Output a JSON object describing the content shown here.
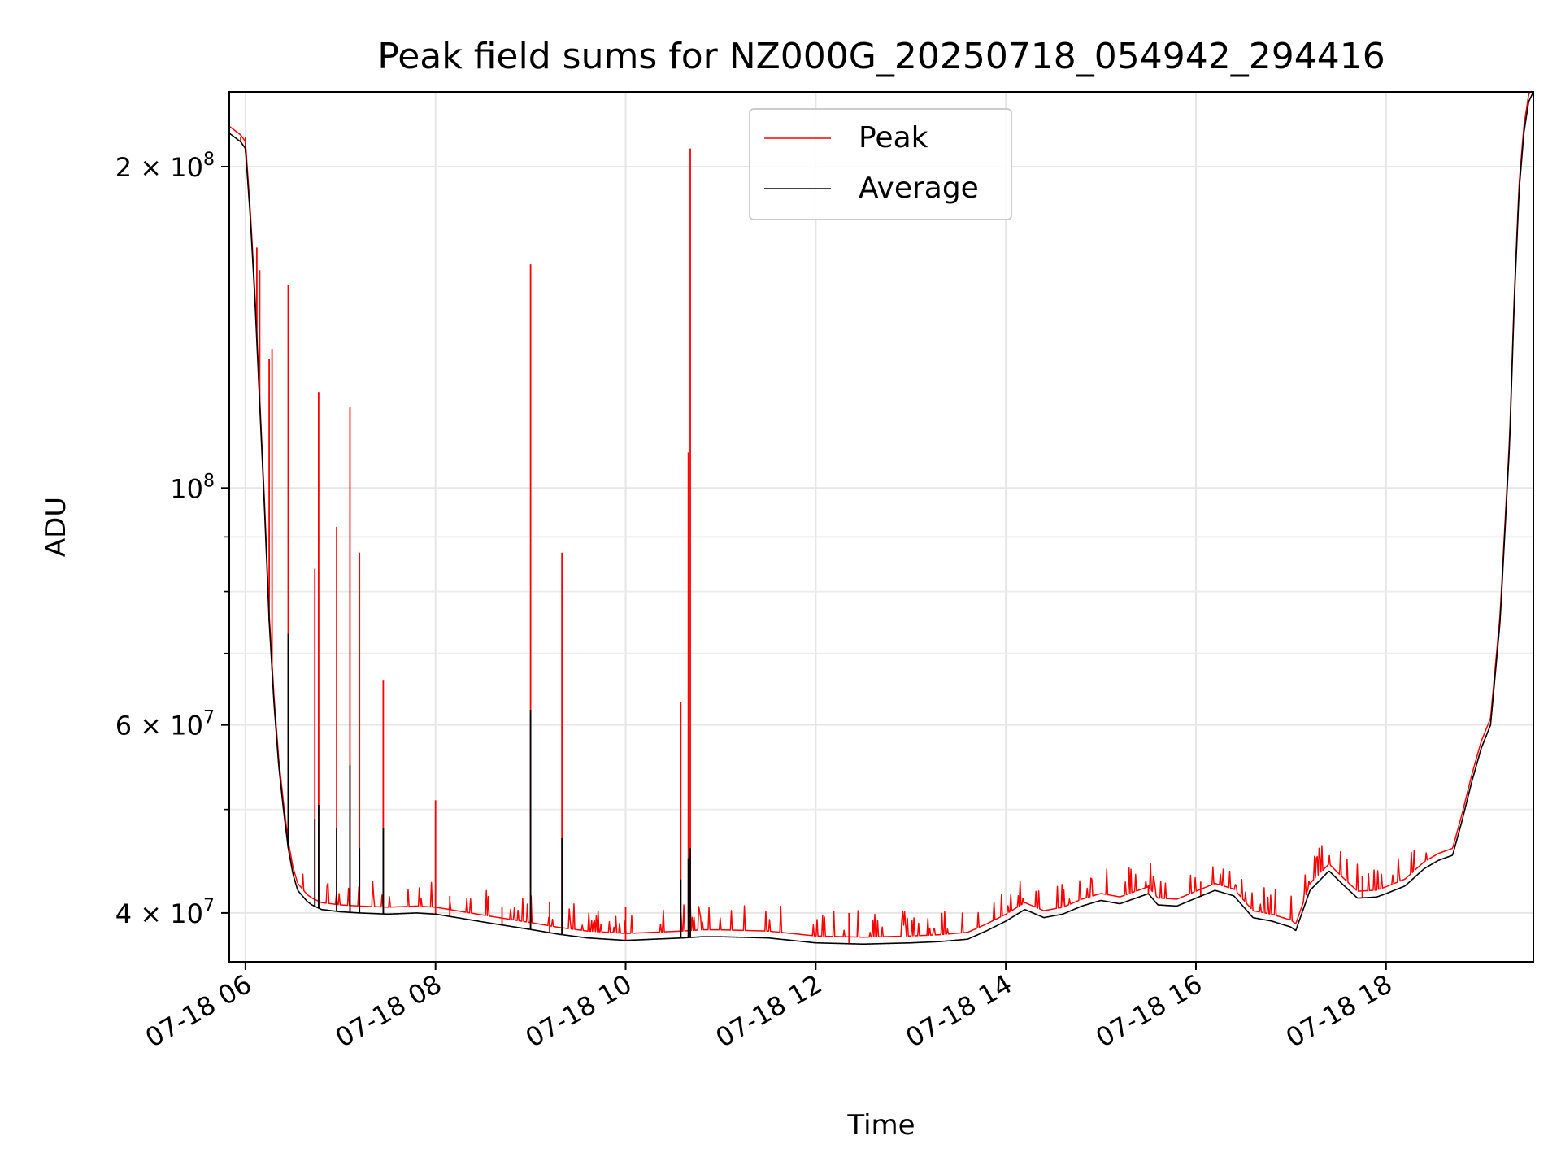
{
  "chart_data": {
    "type": "line",
    "title": "Peak field sums for NZ000G_20250718_054942_294416",
    "xlabel": "Time",
    "ylabel": "ADU",
    "x_unit": "hours (local time of day, 2025-07-18)",
    "xlim": [
      5.83,
      19.55
    ],
    "ylim": [
      36000000,
      235000000
    ],
    "yscale": "log",
    "grid": true,
    "legend_position": "top-center",
    "x_tick_labels": [
      "07-18 06",
      "07-18 08",
      "07-18 10",
      "07-18 12",
      "07-18 14",
      "07-18 16",
      "07-18 18"
    ],
    "x_ticks": [
      6,
      8,
      10,
      12,
      14,
      16,
      18
    ],
    "y_tick_labels": [
      {
        "value": 40000000,
        "mantissa": "4",
        "exponent": "7"
      },
      {
        "value": 60000000,
        "mantissa": "6",
        "exponent": "7"
      },
      {
        "value": 100000000,
        "mantissa": "",
        "exponent": "8"
      },
      {
        "value": 200000000,
        "mantissa": "2",
        "exponent": "8"
      }
    ],
    "y_minor_ticks": [
      50000000,
      70000000,
      80000000,
      90000000
    ],
    "series": [
      {
        "name": "Average",
        "color": "#000000",
        "x": [
          5.83,
          5.95,
          6.0,
          6.05,
          6.1,
          6.15,
          6.2,
          6.25,
          6.3,
          6.35,
          6.4,
          6.45,
          6.5,
          6.55,
          6.6,
          6.65,
          6.7,
          6.75,
          6.8,
          6.9,
          7.0,
          7.2,
          7.5,
          7.8,
          8.0,
          8.3,
          8.6,
          9.0,
          9.3,
          9.6,
          9.8,
          10.0,
          10.3,
          10.6,
          10.8,
          11.0,
          11.5,
          12.0,
          12.5,
          13.0,
          13.3,
          13.6,
          13.8,
          14.0,
          14.2,
          14.4,
          14.6,
          14.8,
          15.0,
          15.2,
          15.4,
          15.5,
          15.6,
          15.8,
          16.0,
          16.2,
          16.4,
          16.6,
          16.8,
          17.0,
          17.05,
          17.2,
          17.4,
          17.55,
          17.7,
          17.9,
          18.0,
          18.2,
          18.4,
          18.55,
          18.7,
          18.8,
          18.9,
          19.0,
          19.1,
          19.2,
          19.3,
          19.35,
          19.4,
          19.45,
          19.5,
          19.55
        ],
        "values": [
          215000000,
          211000000,
          208000000,
          180000000,
          150000000,
          120000000,
          96000000,
          75000000,
          63000000,
          55000000,
          50000000,
          46000000,
          43500000,
          42000000,
          41500000,
          41000000,
          40700000,
          40500000,
          40300000,
          40200000,
          40100000,
          40000000,
          39900000,
          40000000,
          39900000,
          39500000,
          39100000,
          38600000,
          38200000,
          37900000,
          37800000,
          37700000,
          37800000,
          37900000,
          38000000,
          38000000,
          37900000,
          37500000,
          37400000,
          37500000,
          37600000,
          37800000,
          38500000,
          39300000,
          40300000,
          39600000,
          39900000,
          40600000,
          41100000,
          40800000,
          41400000,
          41700000,
          40700000,
          40600000,
          41300000,
          42000000,
          41500000,
          39600000,
          39300000,
          38800000,
          38500000,
          42000000,
          43800000,
          42500000,
          41300000,
          41400000,
          41700000,
          42400000,
          44000000,
          44800000,
          45300000,
          48800000,
          53000000,
          57000000,
          60000000,
          75000000,
          110000000,
          150000000,
          190000000,
          215000000,
          230000000,
          235000000
        ],
        "spikes": [
          {
            "x": 6.45,
            "value": 73000000
          },
          {
            "x": 6.73,
            "value": 49000000
          },
          {
            "x": 6.77,
            "value": 50500000
          },
          {
            "x": 6.96,
            "value": 48000000
          },
          {
            "x": 7.1,
            "value": 55000000
          },
          {
            "x": 7.2,
            "value": 46000000
          },
          {
            "x": 7.45,
            "value": 48000000
          },
          {
            "x": 9.0,
            "value": 62000000
          },
          {
            "x": 9.33,
            "value": 47000000
          },
          {
            "x": 10.58,
            "value": 43000000
          },
          {
            "x": 10.66,
            "value": 45000000
          },
          {
            "x": 10.68,
            "value": 46000000
          }
        ]
      },
      {
        "name": "Peak",
        "color": "#ff0000",
        "baseline_offset": 1.015,
        "spikes": [
          {
            "x": 5.95,
            "value": 213000000
          },
          {
            "x": 6.0,
            "value": 213000000
          },
          {
            "x": 6.12,
            "value": 168000000
          },
          {
            "x": 6.15,
            "value": 160000000
          },
          {
            "x": 6.25,
            "value": 132000000
          },
          {
            "x": 6.28,
            "value": 135000000
          },
          {
            "x": 6.45,
            "value": 155000000
          },
          {
            "x": 6.73,
            "value": 84000000
          },
          {
            "x": 6.77,
            "value": 123000000
          },
          {
            "x": 6.96,
            "value": 92000000
          },
          {
            "x": 7.1,
            "value": 119000000
          },
          {
            "x": 7.2,
            "value": 87000000
          },
          {
            "x": 7.45,
            "value": 66000000
          },
          {
            "x": 8.0,
            "value": 51000000
          },
          {
            "x": 8.15,
            "value": 41500000
          },
          {
            "x": 8.7,
            "value": 40500000
          },
          {
            "x": 9.0,
            "value": 162000000
          },
          {
            "x": 9.2,
            "value": 41000000
          },
          {
            "x": 9.33,
            "value": 87000000
          },
          {
            "x": 10.0,
            "value": 40500000
          },
          {
            "x": 10.58,
            "value": 63000000
          },
          {
            "x": 10.66,
            "value": 108000000
          },
          {
            "x": 10.68,
            "value": 208000000
          },
          {
            "x": 12.35,
            "value": 40000000
          },
          {
            "x": 15.5,
            "value": 42500000
          },
          {
            "x": 16.05,
            "value": 42800000
          },
          {
            "x": 17.75,
            "value": 43300000
          }
        ]
      }
    ]
  }
}
